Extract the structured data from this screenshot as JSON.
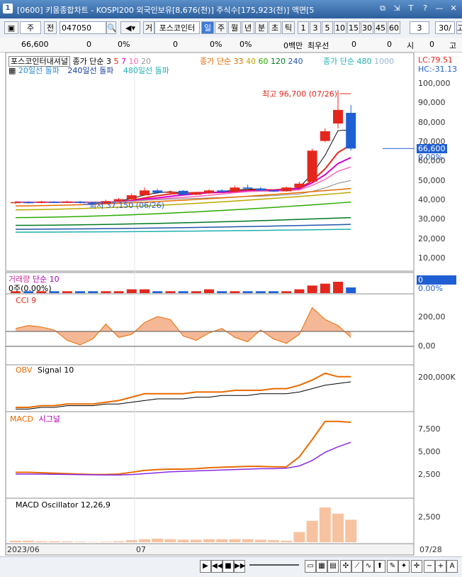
{
  "titlebar": {
    "num": "1",
    "title": "[0600] 키움종합차트 - KOSPI200 외국인보유[8,676(천)] 주식수[175,923(천)] 액면[5",
    "icons": [
      "copy-icon",
      "pin-icon",
      "font-size-icon",
      "help-icon",
      "minimize-icon",
      "close-icon"
    ]
  },
  "toolbar": {
    "type_select": "주",
    "prev_label": "전",
    "code": "047050",
    "stock_name": "포스코인터",
    "periods": [
      "일",
      "주",
      "월",
      "년",
      "분",
      "초",
      "틱"
    ],
    "selected_period": "일",
    "minutes": [
      "1",
      "3",
      "5",
      "10",
      "15",
      "30",
      "45",
      "60"
    ],
    "count_value": "3",
    "range_value": "30/",
    "tail": "고"
  },
  "info_row": {
    "price": "66,600",
    "v1": "0",
    "p1": "0%",
    "v2": "0",
    "p2": "0%",
    "p3": "0%",
    "amount": "0백만",
    "priority_label": "최우선",
    "priority_value": "0",
    "v3": "0",
    "si_label": "시",
    "si_value": "0",
    "go_label": "고"
  },
  "price_panel": {
    "legend1_name": "포스코인터내셔널",
    "legend1_ma": "종가 단순",
    "legend1_periods": [
      "3",
      "5",
      "7",
      "10",
      "20"
    ],
    "legend2_ma": "종가 단순",
    "legend2_periods": [
      "33",
      "40",
      "60",
      "120",
      "240"
    ],
    "legend3_ma": "종가 단순",
    "legend3_periods": [
      "480",
      "1000"
    ],
    "legend4": [
      "20일선 돌파",
      "240일선 돌파",
      "480일선 돌파"
    ],
    "lc_label": "LC:79.51",
    "hc_label": "HC:-31.13",
    "high_annotation": "최고 96,700 (07/26)",
    "low_annotation": "최저 37,150 (06/26)",
    "current_price": "66,600",
    "current_pct": "0.00%",
    "axis_ticks": [
      "100,000",
      "90,000",
      "80,000",
      "70,000",
      "60,000",
      "50,000",
      "40,000",
      "30,000",
      "20,000",
      "10,000"
    ]
  },
  "volume_panel": {
    "title": "거래량",
    "ma": "단순 10",
    "sub": "0주(0.00%)",
    "current": "0",
    "current_pct": "0.00%"
  },
  "cci_panel": {
    "title": "CCI 9",
    "ticks": [
      "200,00",
      "0,00"
    ]
  },
  "obv_panel": {
    "title": "OBV",
    "signal": "Signal 10",
    "ticks": [
      "200,000K"
    ]
  },
  "macd_panel": {
    "title": "MACD",
    "signal": "시그널",
    "ticks": [
      "7,500",
      "5,000",
      "2,500"
    ]
  },
  "osc_panel": {
    "title": "MACD Oscillator 12,26,9",
    "ticks": [
      "2,500"
    ]
  },
  "time_axis": {
    "labels": [
      "2023/06",
      "07",
      "07/28"
    ]
  },
  "colors": {
    "up": "#e3271d",
    "down": "#1f5fd3",
    "accent": "#2c5f9c"
  },
  "chart_data": {
    "type": "line",
    "title": "",
    "candles": [
      {
        "o": 38500,
        "c": 39000,
        "h": 39500,
        "l": 38000
      },
      {
        "o": 39000,
        "c": 38700,
        "h": 39400,
        "l": 38300
      },
      {
        "o": 38700,
        "c": 39100,
        "h": 39600,
        "l": 38400
      },
      {
        "o": 39100,
        "c": 38800,
        "h": 39500,
        "l": 38500
      },
      {
        "o": 38800,
        "c": 39200,
        "h": 39700,
        "l": 38600
      },
      {
        "o": 39200,
        "c": 38600,
        "h": 39600,
        "l": 38200
      },
      {
        "o": 38600,
        "c": 38200,
        "h": 39000,
        "l": 37150
      },
      {
        "o": 38200,
        "c": 39500,
        "h": 40200,
        "l": 38000
      },
      {
        "o": 39500,
        "c": 40500,
        "h": 41200,
        "l": 39200
      },
      {
        "o": 40500,
        "c": 42500,
        "h": 43500,
        "l": 40300
      },
      {
        "o": 42500,
        "c": 45000,
        "h": 46500,
        "l": 42200
      },
      {
        "o": 45000,
        "c": 43800,
        "h": 45800,
        "l": 43200
      },
      {
        "o": 43800,
        "c": 44300,
        "h": 45000,
        "l": 43000
      },
      {
        "o": 44800,
        "c": 42800,
        "h": 45200,
        "l": 42500
      },
      {
        "o": 42800,
        "c": 43600,
        "h": 44200,
        "l": 42500
      },
      {
        "o": 43600,
        "c": 45000,
        "h": 45600,
        "l": 43200
      },
      {
        "o": 45000,
        "c": 44300,
        "h": 45700,
        "l": 43900
      },
      {
        "o": 44300,
        "c": 46500,
        "h": 47500,
        "l": 44000
      },
      {
        "o": 46500,
        "c": 46000,
        "h": 48000,
        "l": 45500
      },
      {
        "o": 46000,
        "c": 45000,
        "h": 46800,
        "l": 44600
      },
      {
        "o": 45000,
        "c": 44600,
        "h": 45600,
        "l": 44200
      },
      {
        "o": 44600,
        "c": 46500,
        "h": 47000,
        "l": 44400
      },
      {
        "o": 46500,
        "c": 48500,
        "h": 49500,
        "l": 46000
      },
      {
        "o": 49500,
        "c": 65500,
        "h": 66500,
        "l": 49000
      },
      {
        "o": 70500,
        "c": 75500,
        "h": 77000,
        "l": 70000
      },
      {
        "o": 79500,
        "c": 86500,
        "h": 96700,
        "l": 77000
      },
      {
        "o": 85000,
        "c": 66600,
        "h": 89000,
        "l": 65500
      }
    ],
    "volume": [
      1,
      1,
      1,
      1,
      1,
      1,
      1,
      1,
      1,
      2,
      2,
      1,
      1,
      1,
      1,
      2,
      1,
      1,
      1,
      1,
      1,
      1,
      2,
      4,
      5,
      6,
      3
    ],
    "cci": [
      120,
      140,
      130,
      110,
      40,
      10,
      50,
      150,
      60,
      80,
      160,
      200,
      180,
      70,
      40,
      90,
      120,
      60,
      30,
      110,
      50,
      20,
      80,
      260,
      180,
      140,
      60
    ],
    "obv": [
      10,
      10,
      11,
      11,
      12,
      12,
      12,
      13,
      14,
      16,
      18,
      18,
      18,
      18,
      19,
      19,
      19,
      20,
      20,
      20,
      21,
      21,
      23,
      26,
      30,
      28,
      28
    ],
    "obv_signal": [
      9,
      9,
      10,
      10,
      11,
      11,
      11,
      12,
      12,
      13,
      14,
      15,
      15,
      15,
      16,
      16,
      17,
      17,
      17,
      18,
      18,
      18,
      19,
      21,
      23,
      24,
      25
    ],
    "macd": [
      2700,
      2700,
      2650,
      2600,
      2550,
      2500,
      2450,
      2450,
      2500,
      2700,
      2900,
      3000,
      3050,
      3050,
      3100,
      3200,
      3250,
      3300,
      3350,
      3350,
      3300,
      3300,
      4400,
      6300,
      8300,
      8300,
      8200
    ],
    "macd_signal": [
      2500,
      2500,
      2500,
      2480,
      2460,
      2440,
      2420,
      2400,
      2400,
      2450,
      2550,
      2650,
      2750,
      2800,
      2850,
      2900,
      2950,
      3000,
      3050,
      3100,
      3100,
      3150,
      3400,
      4000,
      4900,
      5500,
      6000
    ],
    "oscillator": [
      150,
      150,
      100,
      100,
      80,
      50,
      30,
      50,
      100,
      200,
      300,
      350,
      300,
      250,
      250,
      300,
      300,
      300,
      300,
      250,
      200,
      150,
      1000,
      2100,
      3400,
      2800,
      2200
    ]
  }
}
